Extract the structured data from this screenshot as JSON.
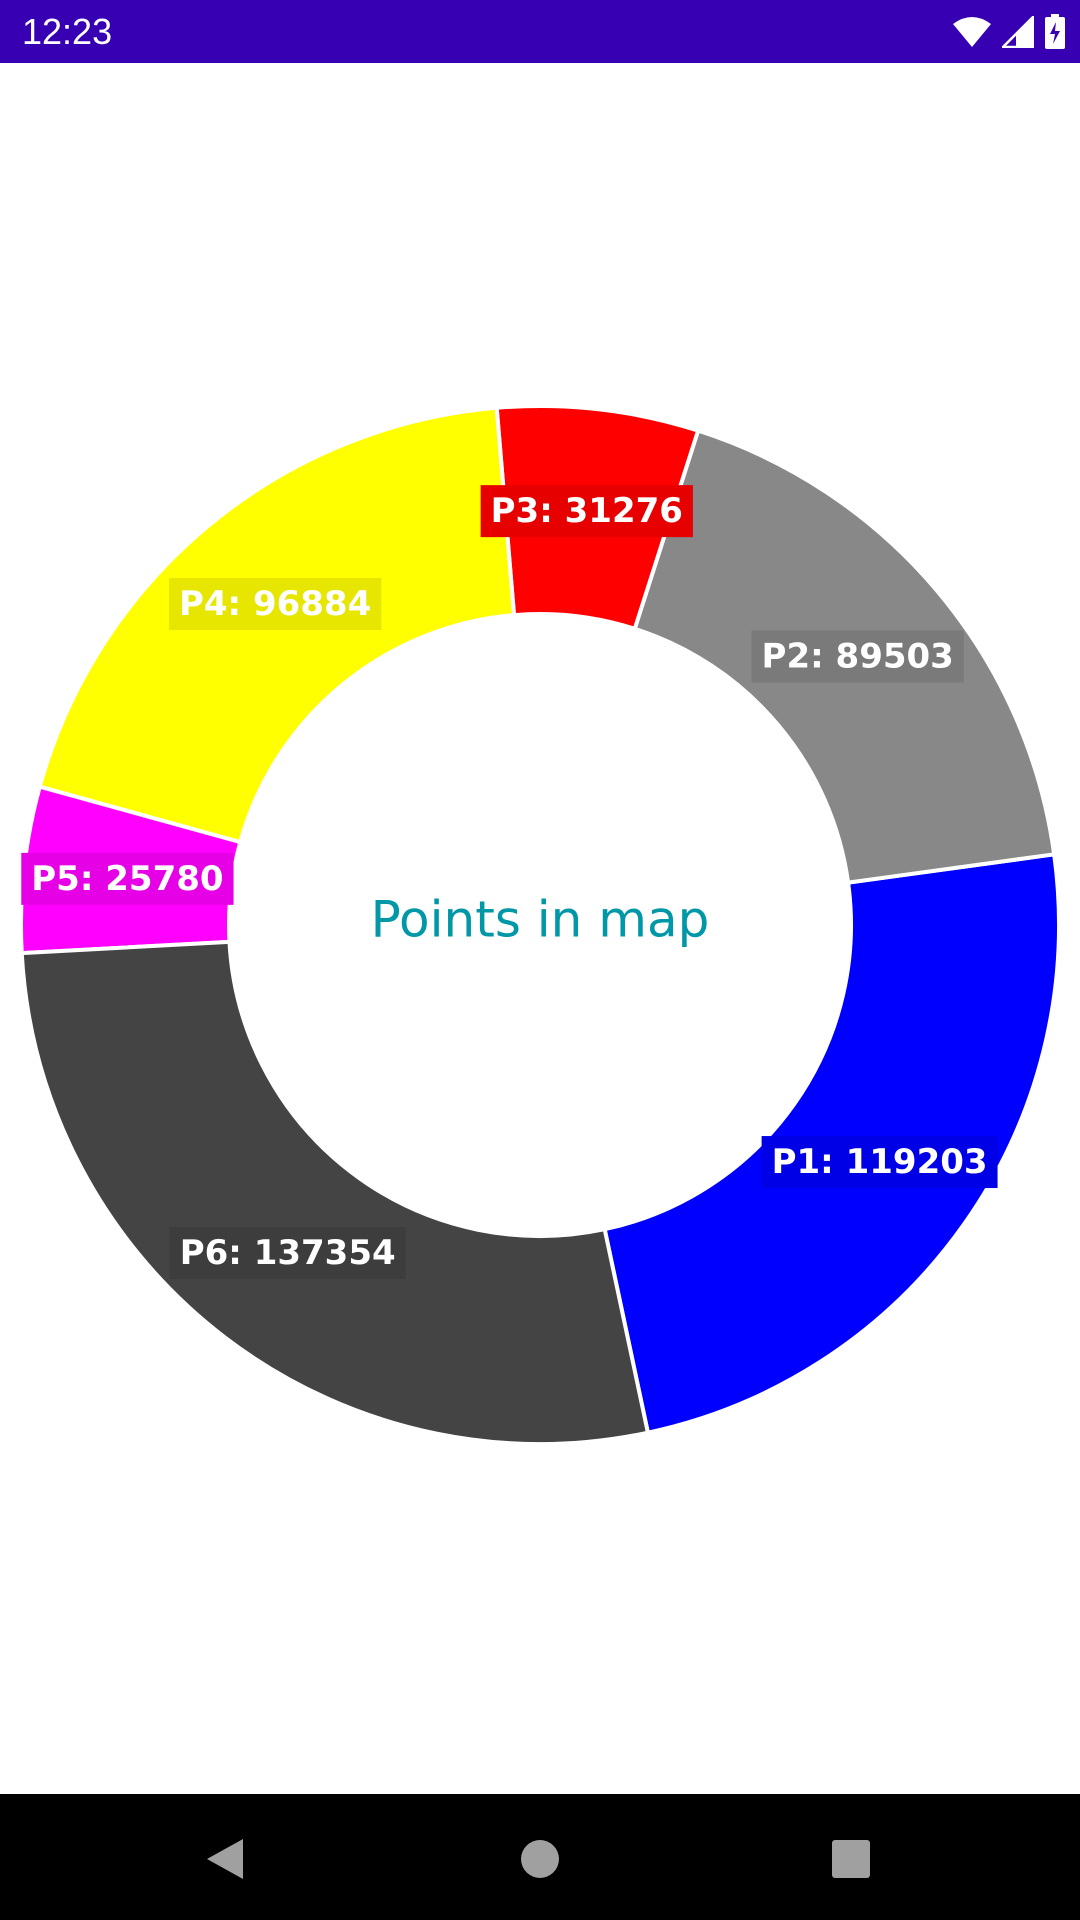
{
  "status_bar": {
    "time": "12:23",
    "icons": [
      "wifi-icon",
      "cellular-signal-icon",
      "battery-charging-icon"
    ]
  },
  "chart_data": {
    "type": "pie",
    "donut": true,
    "center_text": "Points in map",
    "center_text_color": "#0097a7",
    "categories": [
      "P1",
      "P2",
      "P3",
      "P4",
      "P5",
      "P6"
    ],
    "values": [
      119203,
      89503,
      31276,
      96884,
      25780,
      137354
    ],
    "labels": [
      "P1: 119203",
      "P2: 89503",
      "P3: 31276",
      "P4: 96884",
      "P5: 25780",
      "P6: 137354"
    ],
    "colors": [
      "#0000ff",
      "#888888",
      "#ff0000",
      "#ffff00",
      "#ff00ff",
      "#444444"
    ],
    "legend": "none"
  },
  "nav_bar": {
    "icons": [
      "back-icon",
      "home-icon",
      "recents-icon"
    ]
  }
}
